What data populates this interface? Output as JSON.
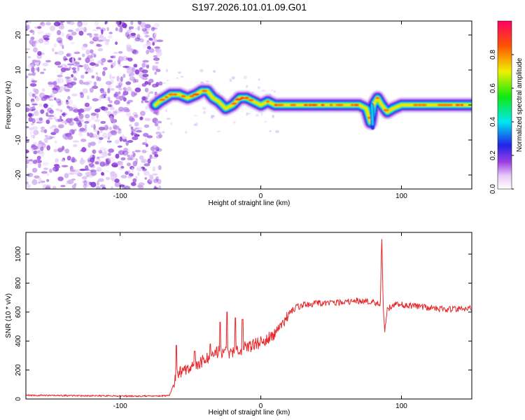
{
  "title": "S197.2026.101.01.09.G01",
  "chart_data": [
    {
      "type": "heatmap",
      "xlabel": "Height of straight line (km)",
      "ylabel": "Frequency (Hz)",
      "xlim": [
        -167,
        150
      ],
      "ylim": [
        -24,
        24
      ],
      "xticks": [
        -100,
        0,
        100
      ],
      "xtick_labels": [
        "-100",
        "0",
        "100"
      ],
      "yticks": [
        -20,
        -10,
        0,
        10,
        20
      ],
      "ytick_labels": [
        "-20",
        "-10",
        "0",
        "10",
        "20"
      ],
      "noise_region_x": [
        -167,
        -75
      ],
      "signal_trace": {
        "x": [
          -75,
          -72,
          -68,
          -64,
          -58,
          -52,
          -46,
          -42,
          -38,
          -34,
          -30,
          -25,
          -20,
          -15,
          -10,
          -5,
          0,
          5,
          10,
          20,
          30,
          40,
          50,
          60,
          70,
          75,
          78,
          80,
          83,
          86,
          90,
          94,
          100,
          110,
          120,
          130,
          140,
          150
        ],
        "y": [
          0,
          1,
          2,
          3,
          3,
          2,
          3,
          4,
          4,
          2,
          1,
          -1,
          0,
          2,
          2,
          1,
          0,
          1,
          0,
          0,
          0,
          0,
          0,
          0,
          0,
          -1,
          -5,
          0,
          2,
          0,
          -2,
          -1,
          0,
          0,
          0,
          0,
          0,
          0
        ]
      },
      "colorbar": {
        "label": "Normalized spectral amplitude",
        "range": [
          0,
          1
        ],
        "ticks": [
          0.0,
          0.2,
          0.4,
          0.6,
          0.8
        ],
        "tick_labels": [
          "0.0",
          "0.2",
          "0.4",
          "0.6",
          "0.8"
        ]
      }
    },
    {
      "type": "line",
      "xlabel": "Height of straight line (km)",
      "ylabel": "SNR (10 * v/v)",
      "xlim": [
        -167,
        150
      ],
      "ylim": [
        0,
        1150
      ],
      "xticks": [
        -100,
        0,
        100
      ],
      "xtick_labels": [
        "-100",
        "0",
        "100"
      ],
      "yticks": [
        0,
        200,
        400,
        600,
        800,
        1000
      ],
      "ytick_labels": [
        "0",
        "200",
        "400",
        "600",
        "800",
        "1000"
      ],
      "color": "#e8262a",
      "series": [
        {
          "name": "SNR",
          "x": [
            -167,
            -150,
            -130,
            -110,
            -90,
            -75,
            -70,
            -65,
            -62,
            -60,
            -55,
            -50,
            -45,
            -40,
            -35,
            -30,
            -25,
            -20,
            -10,
            0,
            10,
            17,
            20,
            25,
            30,
            40,
            50,
            60,
            70,
            80,
            85,
            86,
            87,
            88,
            90,
            95,
            100,
            110,
            120,
            130,
            140,
            150
          ],
          "values": [
            25,
            25,
            22,
            22,
            20,
            20,
            22,
            25,
            100,
            180,
            200,
            210,
            240,
            270,
            300,
            330,
            330,
            320,
            360,
            390,
            440,
            520,
            600,
            630,
            650,
            660,
            665,
            670,
            680,
            670,
            660,
            1140,
            640,
            470,
            620,
            650,
            650,
            640,
            630,
            620,
            620,
            630
          ],
          "spikes": {
            "x": [
              -60,
              -47,
              -36,
              -29,
              -24,
              -18,
              -13
            ],
            "values": [
              370,
              330,
              380,
              530,
              600,
              560,
              550
            ]
          }
        }
      ]
    }
  ]
}
